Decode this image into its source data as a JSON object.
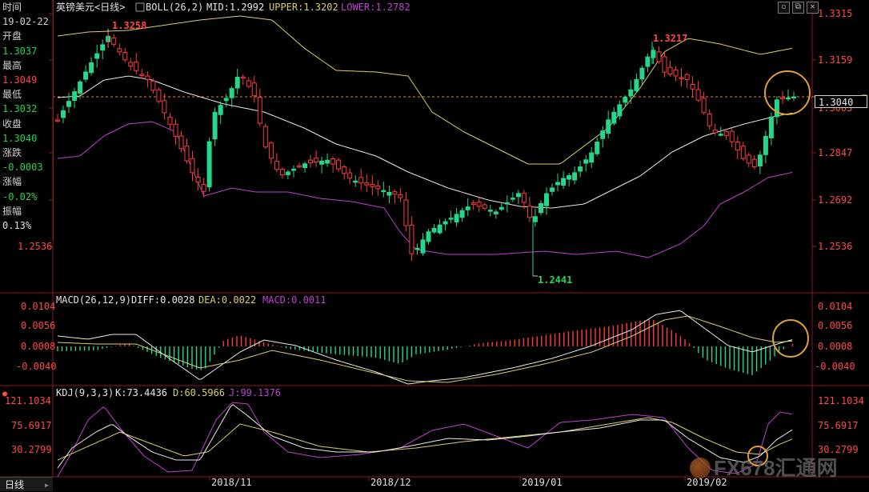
{
  "sidebar": {
    "time_label": "时间",
    "date": "19-02-22",
    "open_label": "开盘",
    "open": "1.3037",
    "high_label": "最高",
    "high": "1.3049",
    "low_label": "最低",
    "low": "1.3032",
    "close_label": "收盘",
    "close": "1.3040",
    "change_label": "涨跌",
    "change": "-0.0003",
    "change_pct_label": "涨幅",
    "change_pct": "-0.02%",
    "amplitude_label": "振幅",
    "amplitude": "0.13%"
  },
  "main_panel": {
    "symbol": "英镑美元<日线>",
    "indicator": "BOLL(26,2)",
    "mid": "MID:1.2992",
    "upper": "UPPER:1.3202",
    "lower": "LOWER:1.2782",
    "current_price": "1.3040",
    "annotation_high_1": "1.3258",
    "annotation_high_2": "1.3217",
    "annotation_low": "1.2441",
    "right_axis_labels": [
      "1.3315",
      "1.3159",
      "1.3003",
      "1.2847",
      "1.2692",
      "1.2536"
    ],
    "left_axis_label": "1.2536"
  },
  "macd_panel": {
    "title": "MACD(26,12,9)",
    "diff": "DIFF:0.0028",
    "dea": "DEA:0.0022",
    "macd": "MACD:0.0011",
    "axis_labels": [
      "0.0104",
      "0.0056",
      "0.0008",
      "-0.0040"
    ]
  },
  "kdj_panel": {
    "title": "KDJ(9,3,3)",
    "k": "K:73.4436",
    "d": "D:60.5966",
    "j": "J:99.1376",
    "axis_labels": [
      "121.1034",
      "75.6917",
      "30.2799"
    ]
  },
  "x_axis_labels": [
    "2018/11",
    "2018/12",
    "2019/01",
    "2019/02"
  ],
  "bottom_tab": {
    "label": "日线"
  },
  "watermark": {
    "text": "FX678汇通网"
  },
  "colors": {
    "bull": "#26d68a",
    "bear": "#ff3b3b",
    "boll_upper": "#d6d06a",
    "boll_mid": "#e8e8e8",
    "boll_lower": "#c040d0",
    "highlight": "#e0a030"
  }
}
